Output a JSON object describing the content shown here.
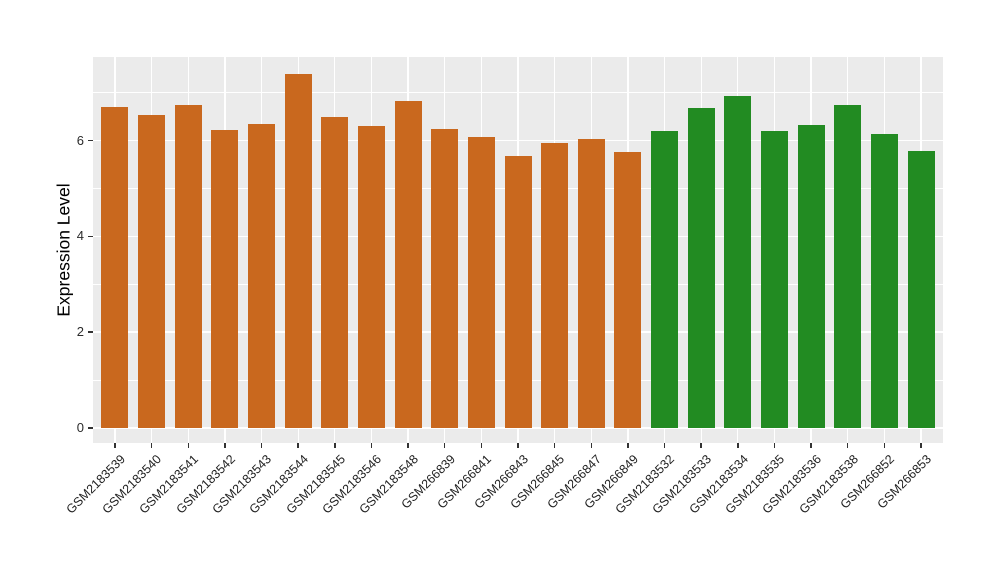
{
  "chart_data": {
    "type": "bar",
    "title": "",
    "xlabel": "",
    "ylabel": "Expression Level",
    "ylim": [
      -0.31,
      7.74
    ],
    "yticks": [
      0,
      2,
      4,
      6
    ],
    "yticks_minor": [
      1,
      3,
      5,
      7
    ],
    "grid": "on",
    "legend": "none",
    "panel_background": "#EBEBEB",
    "grid_color": "#FFFFFF",
    "group_colors": {
      "orange": "#C9681E",
      "green": "#228B22"
    },
    "categories": [
      "GSM2183539",
      "GSM2183540",
      "GSM2183541",
      "GSM2183542",
      "GSM2183543",
      "GSM2183544",
      "GSM2183545",
      "GSM2183546",
      "GSM2183548",
      "GSM266839",
      "GSM266841",
      "GSM266843",
      "GSM266845",
      "GSM266847",
      "GSM266849",
      "GSM2183532",
      "GSM2183533",
      "GSM2183534",
      "GSM2183535",
      "GSM2183536",
      "GSM2183538",
      "GSM266852",
      "GSM266853"
    ],
    "values": [
      6.71,
      6.53,
      6.74,
      6.22,
      6.35,
      7.4,
      6.49,
      6.3,
      6.83,
      6.24,
      6.08,
      5.68,
      5.96,
      6.03,
      5.77,
      6.19,
      6.69,
      6.93,
      6.2,
      6.33,
      6.74,
      6.13,
      5.78
    ],
    "bar_colors": [
      "#C9681E",
      "#C9681E",
      "#C9681E",
      "#C9681E",
      "#C9681E",
      "#C9681E",
      "#C9681E",
      "#C9681E",
      "#C9681E",
      "#C9681E",
      "#C9681E",
      "#C9681E",
      "#C9681E",
      "#C9681E",
      "#C9681E",
      "#228B22",
      "#228B22",
      "#228B22",
      "#228B22",
      "#228B22",
      "#228B22",
      "#228B22",
      "#228B22"
    ]
  }
}
